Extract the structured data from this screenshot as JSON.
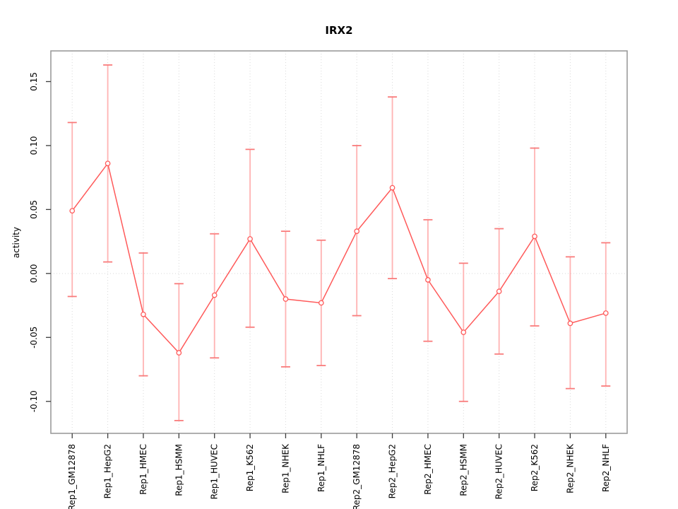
{
  "chart_data": {
    "type": "line",
    "title": "IRX2",
    "xlabel": "",
    "ylabel": "activity",
    "legend": "none",
    "grid": {
      "vertical_per_category": true,
      "horizontal": false,
      "zero_line_dotted": true
    },
    "categories": [
      "Rep1_GM12878",
      "Rep1_HepG2",
      "Rep1_HMEC",
      "Rep1_HSMM",
      "Rep1_HUVEC",
      "Rep1_K562",
      "Rep1_NHEK",
      "Rep1_NHLF",
      "Rep2_GM12878",
      "Rep2_HepG2",
      "Rep2_HMEC",
      "Rep2_HSMM",
      "Rep2_HUVEC",
      "Rep2_K562",
      "Rep2_NHEK",
      "Rep2_NHLF"
    ],
    "series": [
      {
        "name": "activity",
        "marker": "open-circle",
        "values": [
          0.049,
          0.086,
          -0.032,
          -0.062,
          -0.017,
          0.027,
          -0.02,
          -0.023,
          0.033,
          0.067,
          -0.005,
          -0.046,
          -0.014,
          0.029,
          -0.039,
          -0.031
        ],
        "error_high": [
          0.118,
          0.163,
          0.016,
          -0.008,
          0.031,
          0.097,
          0.033,
          0.026,
          0.1,
          0.138,
          0.042,
          0.008,
          0.035,
          0.098,
          0.013,
          0.024
        ],
        "error_low": [
          -0.018,
          0.009,
          -0.08,
          -0.115,
          -0.066,
          -0.042,
          -0.073,
          -0.072,
          -0.033,
          -0.004,
          -0.053,
          -0.1,
          -0.063,
          -0.041,
          -0.09,
          -0.088
        ]
      }
    ],
    "ylim": [
      -0.125,
      0.174
    ],
    "yticks": [
      {
        "value": -0.1,
        "label": "-0.10"
      },
      {
        "value": -0.05,
        "label": "-0.05"
      },
      {
        "value": 0.0,
        "label": "0.00"
      },
      {
        "value": 0.05,
        "label": "0.05"
      },
      {
        "value": 0.1,
        "label": "0.10"
      },
      {
        "value": 0.15,
        "label": "0.15"
      }
    ],
    "colors": {
      "point": "#ff5a5a",
      "line": "#ff5a5a",
      "error_stem": "#ffb3b3",
      "error_cap": "#f97c7c",
      "grid": "#d9d9d9",
      "box": "#9b9b9b",
      "tick": "#3c3c3c",
      "text": "#000000"
    }
  }
}
